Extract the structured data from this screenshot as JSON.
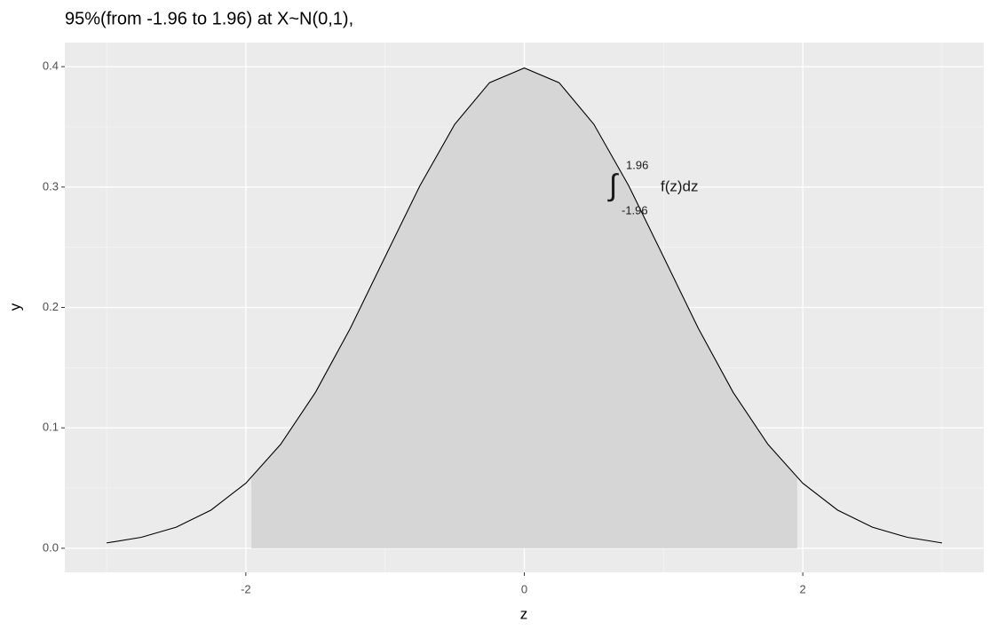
{
  "chart_data": {
    "type": "line",
    "title": "95%(from -1.96 to 1.96) at X~N(0,1),",
    "x_label": "z",
    "y_label": "y",
    "xlim": [
      -3.3,
      3.3
    ],
    "ylim": [
      -0.02,
      0.42
    ],
    "xticks": [
      -2,
      0,
      2
    ],
    "xminorticks": [
      -3,
      -1,
      1,
      3
    ],
    "yticks": [
      {
        "value": 0,
        "label": "0.0"
      },
      0.1,
      0.2,
      0.3,
      0.4
    ],
    "yminorticks": [
      0.05,
      0.15,
      0.25,
      0.35
    ],
    "grid": true,
    "series": [
      {
        "type": "line",
        "color": "#000000",
        "x": [
          -3,
          -2.75,
          -2.5,
          -2.25,
          -2,
          -1.75,
          -1.5,
          -1.25,
          -1,
          -0.75,
          -0.5,
          -0.25,
          0,
          0.25,
          0.5,
          0.75,
          1,
          1.25,
          1.5,
          1.75,
          2,
          2.25,
          2.5,
          2.75,
          3
        ],
        "values": [
          0.0044,
          0.0091,
          0.0175,
          0.0317,
          0.054,
          0.0863,
          0.1295,
          0.1826,
          0.242,
          0.3011,
          0.3521,
          0.3867,
          0.3989,
          0.3867,
          0.3521,
          0.3011,
          0.242,
          0.1826,
          0.1295,
          0.0863,
          0.054,
          0.0317,
          0.0175,
          0.0091,
          0.0044
        ]
      },
      {
        "type": "area",
        "color": "#d6d6d6",
        "x": [
          -1.96,
          -1.75,
          -1.5,
          -1.25,
          -1,
          -0.75,
          -0.5,
          -0.25,
          0,
          0.25,
          0.5,
          0.75,
          1,
          1.25,
          1.5,
          1.75,
          1.96
        ],
        "values": [
          0.0584,
          0.0863,
          0.1295,
          0.1826,
          0.242,
          0.3011,
          0.3521,
          0.3867,
          0.3989,
          0.3867,
          0.3521,
          0.3011,
          0.242,
          0.1826,
          0.1295,
          0.0863,
          0.0584
        ]
      }
    ],
    "annotation": {
      "symbol": "∫",
      "upper": "1.96",
      "lower": "-1.96",
      "integrand": "f(z)dz"
    }
  }
}
